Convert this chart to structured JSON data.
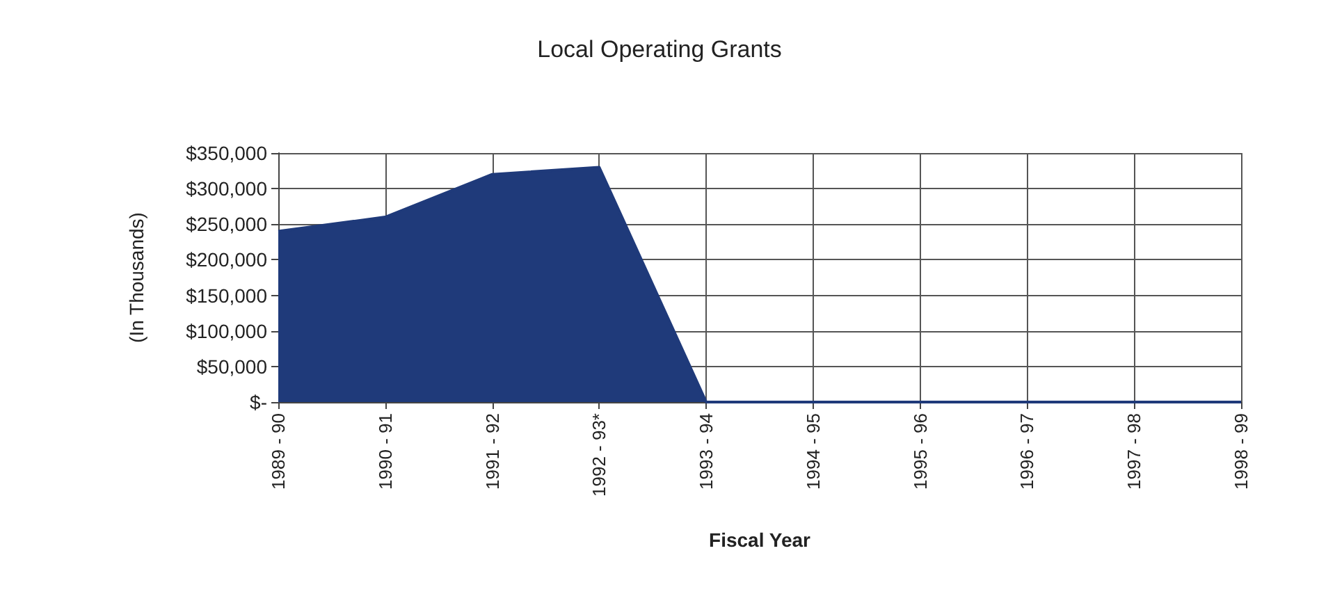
{
  "chart_data": {
    "type": "area",
    "title": "Local Operating Grants",
    "xlabel": "Fiscal Year",
    "ylabel": "(In Thousands)",
    "categories": [
      "1989 - 90",
      "1990 - 91",
      "1991 - 92",
      "1992 - 93*",
      "1993 - 94",
      "1994 - 95",
      "1995 - 96",
      "1996 - 97",
      "1997 - 98",
      "1998 - 99"
    ],
    "values": [
      240000,
      260000,
      320000,
      330000,
      0,
      0,
      0,
      0,
      0,
      0
    ],
    "color": "#1f3a7a",
    "ylim": [
      0,
      350000
    ],
    "yticks": [
      {
        "value": 0,
        "label": "$-"
      },
      {
        "value": 50000,
        "label": "$50,000"
      },
      {
        "value": 100000,
        "label": "$100,000"
      },
      {
        "value": 150000,
        "label": "$150,000"
      },
      {
        "value": 200000,
        "label": "$200,000"
      },
      {
        "value": 250000,
        "label": "$250,000"
      },
      {
        "value": 300000,
        "label": "$300,000"
      },
      {
        "value": 350000,
        "label": "$350,000"
      }
    ],
    "grid": true
  }
}
